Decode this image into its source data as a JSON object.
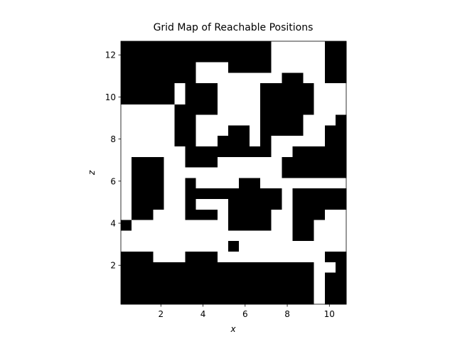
{
  "chart_data": {
    "type": "heatmap",
    "title": "Grid Map of Reachable Positions",
    "x_label": "x",
    "y_label": "z",
    "xlim": [
      0.1,
      10.8
    ],
    "ylim": [
      0.15,
      12.65
    ],
    "xticks": [
      2,
      4,
      6,
      8,
      10
    ],
    "yticks": [
      2,
      4,
      6,
      8,
      10,
      12
    ],
    "colors": [
      "#000000",
      "#ffffff"
    ],
    "values": [
      [
        0,
        0,
        0,
        0,
        0,
        0,
        0,
        0,
        0,
        0,
        0,
        0,
        0,
        0,
        1,
        1,
        1,
        1,
        1,
        0,
        0
      ],
      [
        0,
        0,
        0,
        0,
        0,
        0,
        0,
        0,
        0,
        0,
        0,
        0,
        0,
        0,
        1,
        1,
        1,
        1,
        1,
        0,
        0
      ],
      [
        0,
        0,
        0,
        0,
        0,
        0,
        0,
        1,
        1,
        1,
        0,
        0,
        0,
        0,
        1,
        1,
        1,
        1,
        1,
        0,
        0
      ],
      [
        0,
        0,
        0,
        0,
        0,
        0,
        0,
        1,
        1,
        1,
        1,
        1,
        1,
        1,
        1,
        0,
        0,
        1,
        1,
        0,
        0
      ],
      [
        0,
        0,
        0,
        0,
        0,
        1,
        0,
        0,
        0,
        1,
        1,
        1,
        1,
        0,
        0,
        0,
        0,
        0,
        1,
        1,
        1
      ],
      [
        0,
        0,
        0,
        0,
        0,
        1,
        0,
        0,
        0,
        1,
        1,
        1,
        1,
        0,
        0,
        0,
        0,
        0,
        1,
        1,
        1
      ],
      [
        1,
        1,
        1,
        1,
        1,
        0,
        0,
        0,
        0,
        1,
        1,
        1,
        1,
        0,
        0,
        0,
        0,
        0,
        1,
        1,
        1
      ],
      [
        1,
        1,
        1,
        1,
        1,
        0,
        0,
        1,
        1,
        1,
        1,
        1,
        1,
        0,
        0,
        0,
        0,
        1,
        1,
        1,
        0
      ],
      [
        1,
        1,
        1,
        1,
        1,
        0,
        0,
        1,
        1,
        1,
        0,
        0,
        1,
        0,
        0,
        0,
        0,
        1,
        1,
        0,
        0
      ],
      [
        1,
        1,
        1,
        1,
        1,
        0,
        0,
        1,
        1,
        0,
        0,
        0,
        1,
        0,
        1,
        1,
        1,
        1,
        1,
        0,
        0
      ],
      [
        1,
        1,
        1,
        1,
        1,
        1,
        0,
        0,
        0,
        0,
        0,
        0,
        0,
        0,
        1,
        1,
        0,
        0,
        0,
        0,
        0
      ],
      [
        1,
        0,
        0,
        0,
        1,
        1,
        0,
        0,
        0,
        1,
        1,
        1,
        1,
        1,
        1,
        0,
        0,
        0,
        0,
        0,
        0
      ],
      [
        1,
        0,
        0,
        0,
        1,
        1,
        1,
        1,
        1,
        1,
        1,
        1,
        1,
        1,
        1,
        0,
        0,
        0,
        0,
        0,
        0
      ],
      [
        1,
        0,
        0,
        0,
        1,
        1,
        0,
        1,
        1,
        1,
        1,
        0,
        0,
        1,
        1,
        1,
        1,
        1,
        1,
        1,
        1
      ],
      [
        1,
        0,
        0,
        0,
        1,
        1,
        0,
        0,
        0,
        0,
        0,
        0,
        0,
        0,
        0,
        1,
        0,
        0,
        0,
        0,
        0
      ],
      [
        1,
        0,
        0,
        0,
        1,
        1,
        0,
        1,
        1,
        1,
        0,
        0,
        0,
        0,
        0,
        1,
        0,
        0,
        0,
        0,
        0
      ],
      [
        1,
        0,
        0,
        1,
        1,
        1,
        0,
        0,
        0,
        1,
        0,
        0,
        0,
        0,
        1,
        1,
        0,
        0,
        0,
        1,
        1
      ],
      [
        0,
        1,
        1,
        1,
        1,
        1,
        1,
        1,
        1,
        1,
        0,
        0,
        0,
        0,
        1,
        1,
        0,
        0,
        1,
        1,
        1
      ],
      [
        1,
        1,
        1,
        1,
        1,
        1,
        1,
        1,
        1,
        1,
        1,
        1,
        1,
        1,
        1,
        1,
        0,
        0,
        1,
        1,
        1
      ],
      [
        1,
        1,
        1,
        1,
        1,
        1,
        1,
        1,
        1,
        1,
        0,
        1,
        1,
        1,
        1,
        1,
        1,
        1,
        1,
        1,
        1
      ],
      [
        0,
        0,
        0,
        1,
        1,
        1,
        0,
        0,
        0,
        1,
        1,
        1,
        1,
        1,
        1,
        1,
        1,
        1,
        1,
        0,
        0
      ],
      [
        0,
        0,
        0,
        0,
        0,
        0,
        0,
        0,
        0,
        0,
        0,
        0,
        0,
        0,
        0,
        0,
        0,
        0,
        1,
        1,
        0
      ],
      [
        0,
        0,
        0,
        0,
        0,
        0,
        0,
        0,
        0,
        0,
        0,
        0,
        0,
        0,
        0,
        0,
        0,
        0,
        1,
        0,
        0
      ],
      [
        0,
        0,
        0,
        0,
        0,
        0,
        0,
        0,
        0,
        0,
        0,
        0,
        0,
        0,
        0,
        0,
        0,
        0,
        1,
        0,
        0
      ],
      [
        0,
        0,
        0,
        0,
        0,
        0,
        0,
        0,
        0,
        0,
        0,
        0,
        0,
        0,
        0,
        0,
        0,
        0,
        1,
        0,
        0
      ]
    ]
  }
}
